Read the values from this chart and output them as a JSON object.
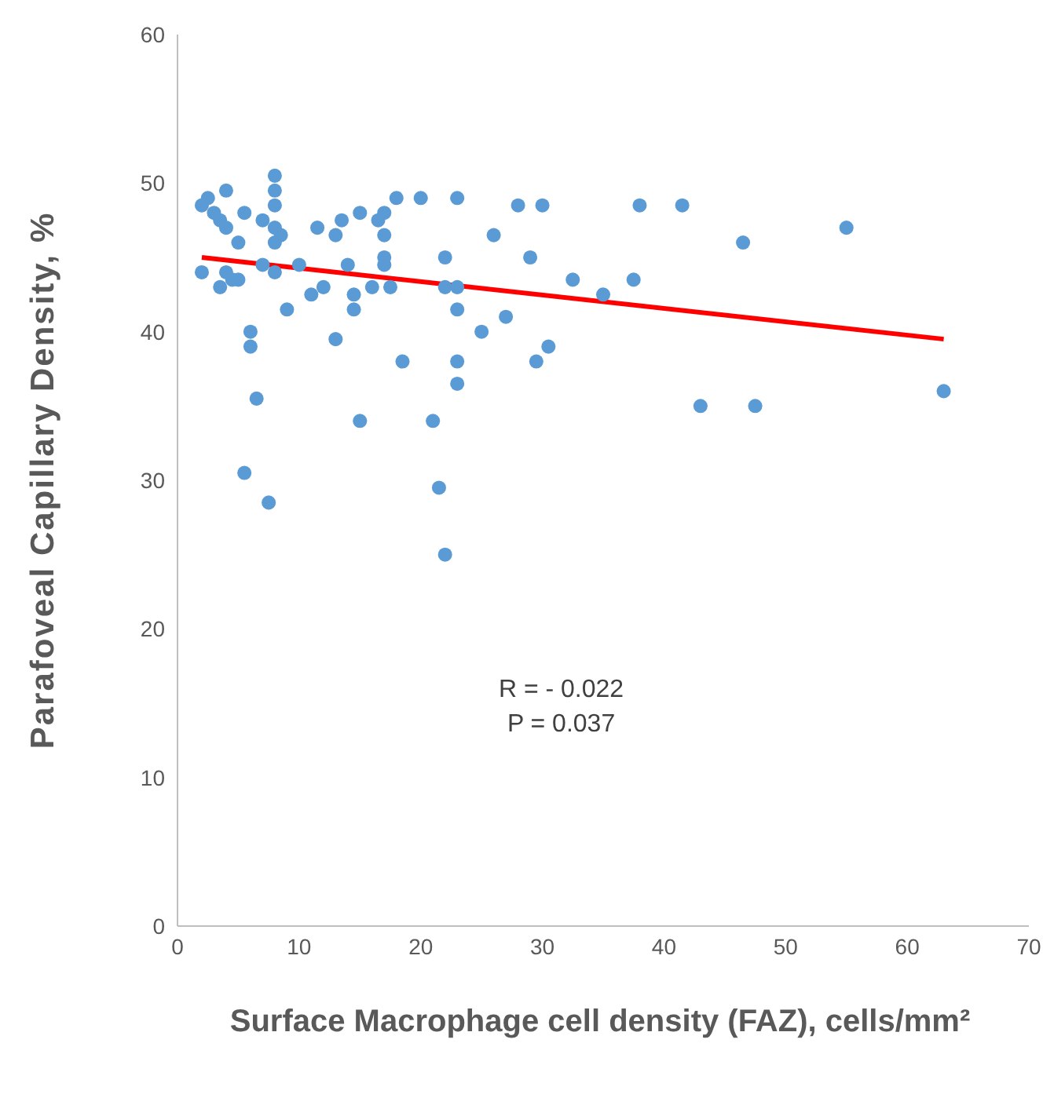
{
  "chart_data": {
    "type": "scatter",
    "xlabel": "Surface Macrophage cell density (FAZ), cells/mm²",
    "ylabel": "Parafoveal Capillary Density, %",
    "xlim": [
      0,
      70
    ],
    "xticks": [
      0,
      10,
      20,
      30,
      40,
      50,
      60,
      70
    ],
    "ylim": [
      0,
      60
    ],
    "yticks": [
      0,
      10,
      20,
      30,
      40,
      50,
      60
    ],
    "grid": false,
    "marker": "circle",
    "annotations": [
      "R = - 0.022",
      "P = 0.037"
    ],
    "series": [
      {
        "color": "#5b9bd5",
        "x": [
          2,
          2,
          2.5,
          3,
          3.5,
          3.5,
          4,
          4,
          4,
          4.5,
          5,
          5,
          5.5,
          5.5,
          6,
          6,
          6.5,
          7,
          7,
          7.5,
          8,
          8,
          8,
          8,
          8,
          8,
          8.5,
          9,
          10,
          11,
          11.5,
          12,
          13,
          13,
          13.5,
          14,
          14.5,
          14.5,
          15,
          15,
          16,
          16.5,
          17,
          17,
          17,
          17,
          17.5,
          18,
          18.5,
          20,
          21,
          21.5,
          22,
          22,
          22,
          23,
          23,
          23,
          23,
          23,
          25,
          26,
          27,
          28,
          29,
          29.5,
          30,
          30.5,
          32.5,
          35,
          37.5,
          38,
          41.5,
          43,
          46.5,
          47.5,
          55,
          63
        ],
        "values": [
          44,
          48.5,
          49,
          48,
          47.5,
          43,
          49.5,
          47,
          44,
          43.5,
          46,
          43.5,
          48,
          30.5,
          39,
          40,
          35.5,
          47.5,
          44.5,
          28.5,
          50.5,
          49.5,
          48.5,
          47,
          46,
          44,
          46.5,
          41.5,
          44.5,
          42.5,
          47,
          43,
          46.5,
          39.5,
          47.5,
          44.5,
          42.5,
          41.5,
          48,
          34,
          43,
          47.5,
          48,
          46.5,
          45,
          44.5,
          43,
          49,
          38,
          49,
          34,
          29.5,
          25,
          45,
          43,
          49,
          41.5,
          38,
          36.5,
          43,
          40,
          46.5,
          41,
          48.5,
          45,
          38,
          48.5,
          39,
          43.5,
          42.5,
          43.5,
          48.5,
          48.5,
          35,
          46,
          35,
          47,
          36
        ]
      },
      {
        "type": "line",
        "color": "#ff0000",
        "line_style": "solid",
        "marker": "none",
        "x": [
          2,
          63
        ],
        "values": [
          45,
          39.5
        ]
      }
    ]
  }
}
